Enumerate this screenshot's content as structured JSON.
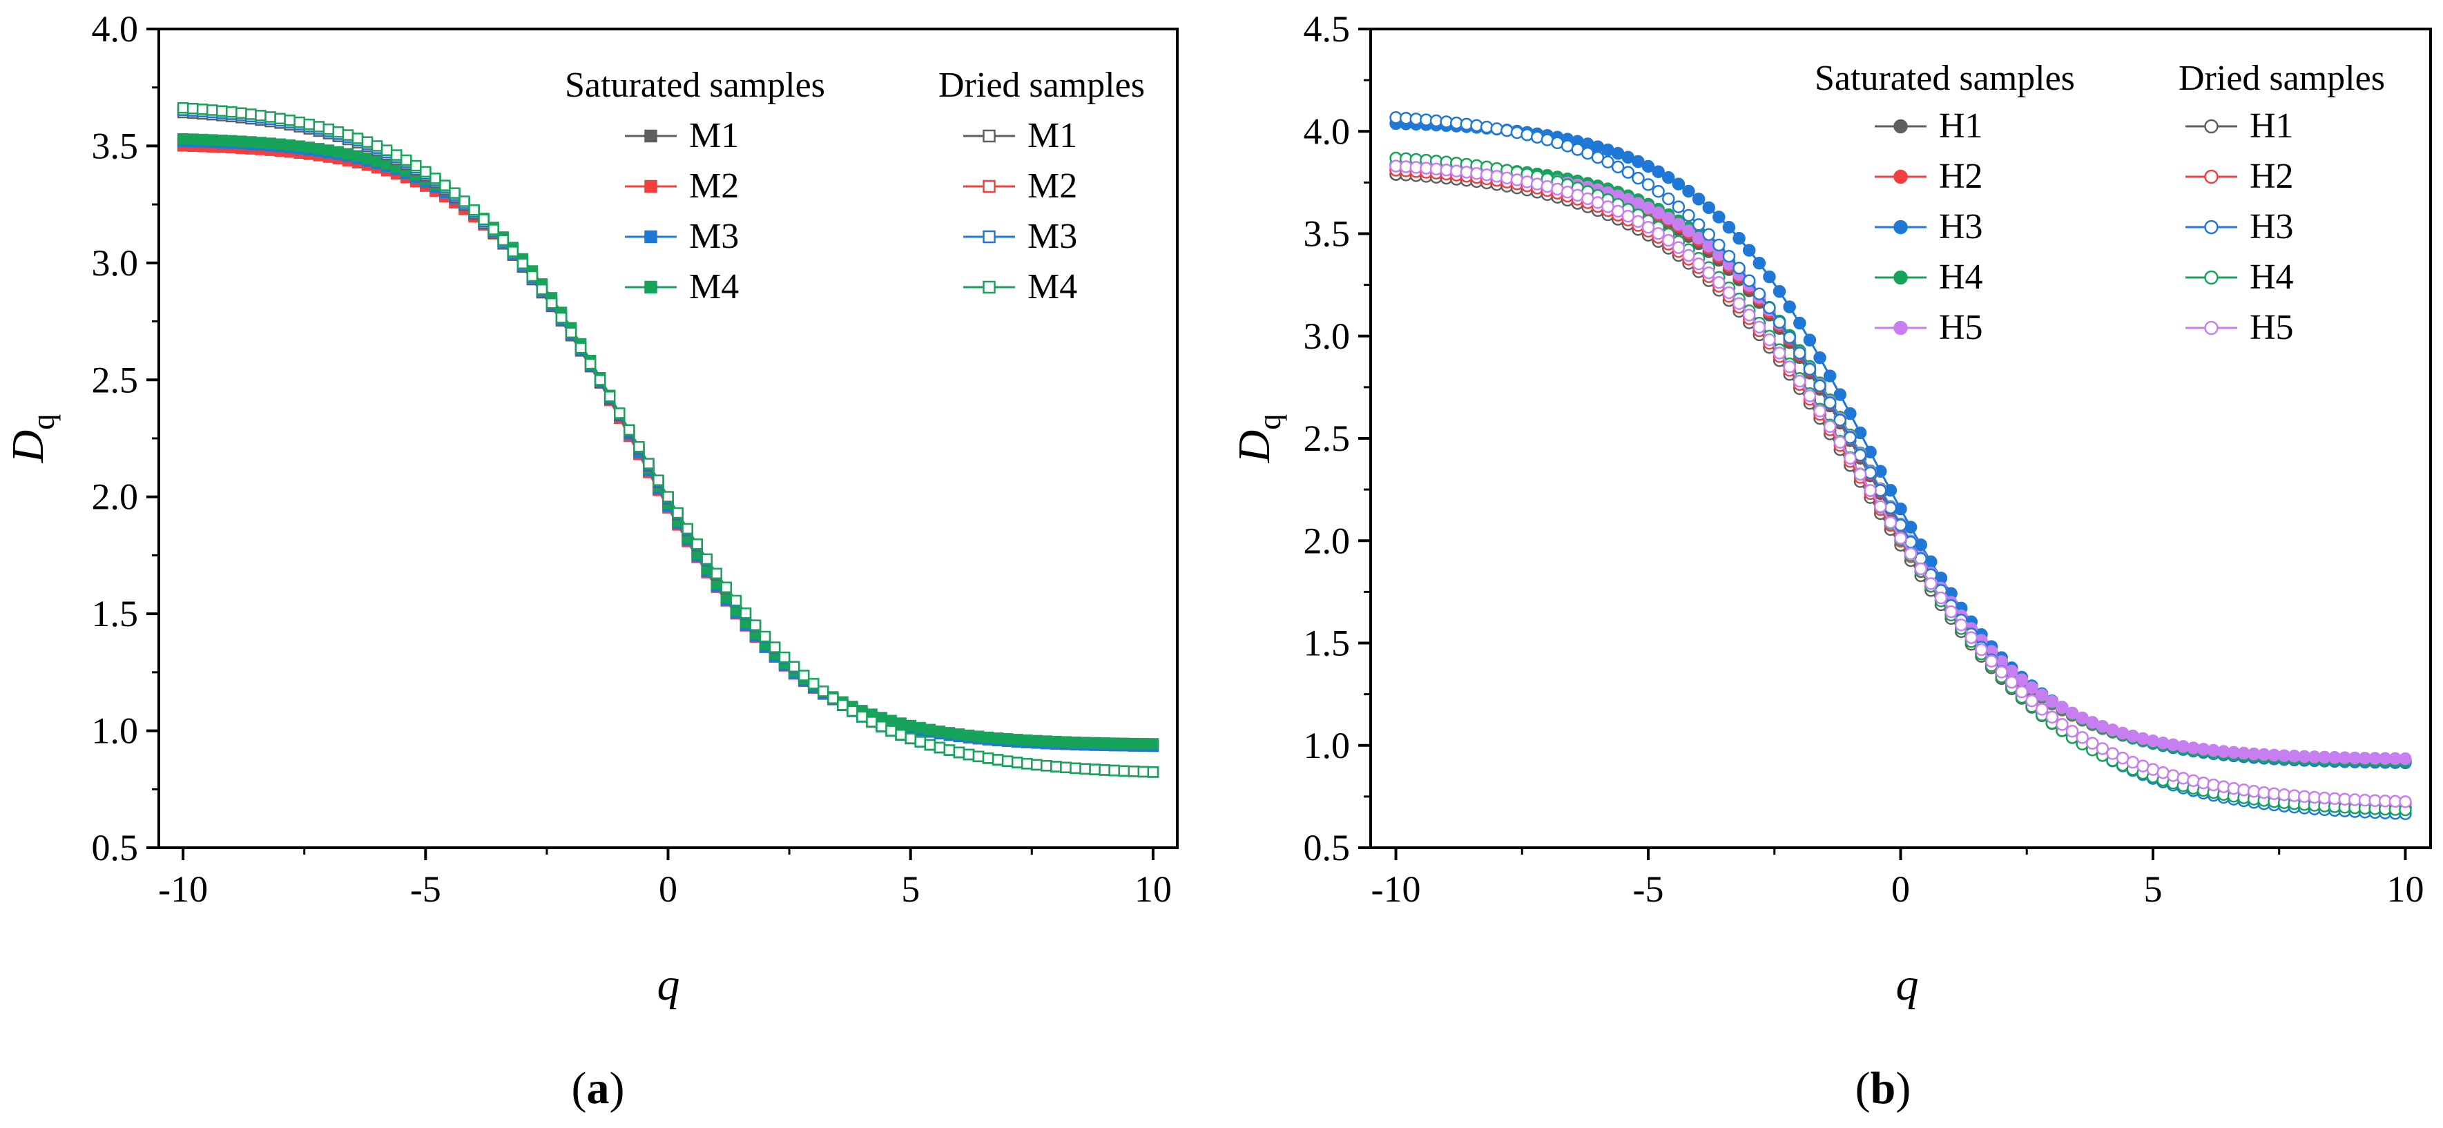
{
  "chart_data": [
    {
      "type": "scatter",
      "panel_label": {
        "open": "(",
        "letter": "a",
        "close": ")"
      },
      "xlabel": "q",
      "ylabel": {
        "main": "D",
        "sub": "q"
      },
      "xlim": [
        -10.5,
        10.5
      ],
      "ylim": [
        0.5,
        4.0
      ],
      "xticks": [
        "-10",
        "-5",
        "0",
        "5",
        "10"
      ],
      "xtick_values": [
        -10,
        -5,
        0,
        5,
        10
      ],
      "yticks": [
        "0.5",
        "1.0",
        "1.5",
        "2.0",
        "2.5",
        "3.0",
        "3.5",
        "4.0"
      ],
      "ytick_values": [
        0.5,
        1.0,
        1.5,
        2.0,
        2.5,
        3.0,
        3.5,
        4.0
      ],
      "marker": "square",
      "legend": {
        "saturated_title": "Saturated samples",
        "dried_title": "Dried samples"
      },
      "x_range": [
        -10,
        10,
        0.2
      ],
      "series": [
        {
          "name": "M1",
          "group": "saturated",
          "color": "#5f5f5f",
          "d_minus10": 3.52,
          "d_plus10": 0.93
        },
        {
          "name": "M2",
          "group": "saturated",
          "color": "#f23f3f",
          "d_minus10": 3.51,
          "d_plus10": 0.93
        },
        {
          "name": "M3",
          "group": "saturated",
          "color": "#1f78d6",
          "d_minus10": 3.53,
          "d_plus10": 0.93
        },
        {
          "name": "M4",
          "group": "saturated",
          "color": "#16a35a",
          "d_minus10": 3.54,
          "d_plus10": 0.94
        },
        {
          "name": "M1",
          "group": "dried",
          "color": "#5f5f5f",
          "d_minus10": 3.67,
          "d_plus10": 0.81
        },
        {
          "name": "M2",
          "group": "dried",
          "color": "#f23f3f",
          "d_minus10": 3.68,
          "d_plus10": 0.81
        },
        {
          "name": "M3",
          "group": "dried",
          "color": "#1f78d6",
          "d_minus10": 3.68,
          "d_plus10": 0.81
        },
        {
          "name": "M4",
          "group": "dried",
          "color": "#16a35a",
          "d_minus10": 3.69,
          "d_plus10": 0.81
        }
      ]
    },
    {
      "type": "scatter",
      "panel_label": {
        "open": "(",
        "letter": "b",
        "close": ")"
      },
      "xlabel": "q",
      "ylabel": {
        "main": "D",
        "sub": "q"
      },
      "xlim": [
        -10.5,
        10.5
      ],
      "ylim": [
        0.5,
        4.5
      ],
      "xticks": [
        "-10",
        "-5",
        "0",
        "5",
        "10"
      ],
      "xtick_values": [
        -10,
        -5,
        0,
        5,
        10
      ],
      "yticks": [
        "0.5",
        "1.0",
        "1.5",
        "2.0",
        "2.5",
        "3.0",
        "3.5",
        "4.0",
        "4.5"
      ],
      "ytick_values": [
        0.5,
        1.0,
        1.5,
        2.0,
        2.5,
        3.0,
        3.5,
        4.0,
        4.5
      ],
      "marker": "circle",
      "legend": {
        "saturated_title": "Saturated samples",
        "dried_title": "Dried samples"
      },
      "x_range": [
        -10,
        10,
        0.2
      ],
      "series": [
        {
          "name": "H1",
          "group": "saturated",
          "color": "#5f5f5f",
          "d_minus10": 3.8,
          "d_plus10": 0.92
        },
        {
          "name": "H2",
          "group": "saturated",
          "color": "#f23f3f",
          "d_minus10": 3.82,
          "d_plus10": 0.92
        },
        {
          "name": "H3",
          "group": "saturated",
          "color": "#1f78d6",
          "d_minus10": 4.05,
          "d_plus10": 0.91
        },
        {
          "name": "H4",
          "group": "saturated",
          "color": "#16a35a",
          "d_minus10": 3.85,
          "d_plus10": 0.92
        },
        {
          "name": "H5",
          "group": "saturated",
          "color": "#c77ef0",
          "d_minus10": 3.83,
          "d_plus10": 0.93
        },
        {
          "name": "H1",
          "group": "dried",
          "color": "#5f5f5f",
          "d_minus10": 3.82,
          "d_plus10": 0.68
        },
        {
          "name": "H2",
          "group": "dried",
          "color": "#f23f3f",
          "d_minus10": 3.84,
          "d_plus10": 0.7
        },
        {
          "name": "H3",
          "group": "dried",
          "color": "#1f78d6",
          "d_minus10": 4.1,
          "d_plus10": 0.65
        },
        {
          "name": "H4",
          "group": "dried",
          "color": "#16a35a",
          "d_minus10": 3.9,
          "d_plus10": 0.67
        },
        {
          "name": "H5",
          "group": "dried",
          "color": "#c77ef0",
          "d_minus10": 3.86,
          "d_plus10": 0.71
        }
      ]
    }
  ]
}
